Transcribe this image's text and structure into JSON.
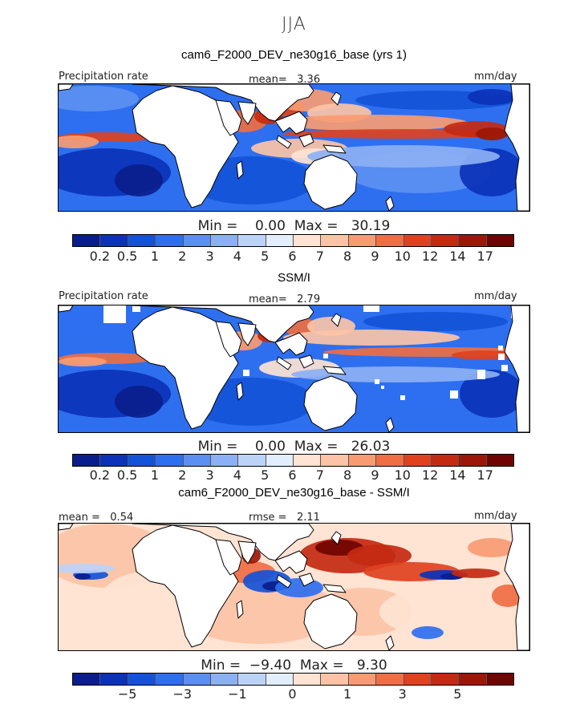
{
  "figure": {
    "season": "JJA"
  },
  "colors": {
    "abs_scale": [
      "#0a1d8c",
      "#0b32b8",
      "#1453d8",
      "#2e6ff0",
      "#5c8ff2",
      "#8cb0f4",
      "#bcd3f8",
      "#e2eefc",
      "#ffe3d3",
      "#fcc3a6",
      "#f89b72",
      "#ef6e43",
      "#e0421f",
      "#c42a12",
      "#9c1707",
      "#700402"
    ],
    "diff_scale": [
      "#0a1d8c",
      "#0b32b8",
      "#1453d8",
      "#2e6ff0",
      "#5c8ff2",
      "#8cb0f4",
      "#bcd3f8",
      "#e2eefc",
      "#ffe3d3",
      "#fcc3a6",
      "#f89b72",
      "#ef6e43",
      "#e0421f",
      "#c42a12",
      "#9c1707",
      "#700402"
    ],
    "land": "#ffffff",
    "coast": "#000000"
  },
  "panels": [
    {
      "title": "cam6_F2000_DEV_ne30g16_base (yrs 1)",
      "left_label": "Precipitation rate",
      "mid_label": "mean=   3.36",
      "units": "mm/day",
      "minmax": "Min =    0.00  Max =   30.19",
      "field": "model",
      "tick_labels": [
        "0.2",
        "0.5",
        "1",
        "2",
        "3",
        "4",
        "5",
        "6",
        "7",
        "8",
        "9",
        "10",
        "12",
        "14",
        "17"
      ]
    },
    {
      "title": "SSM/I",
      "left_label": "Precipitation rate",
      "mid_label": "mean=   2.79",
      "units": "mm/day",
      "minmax": "Min =    0.00  Max =   26.03",
      "field": "obs",
      "tick_labels": [
        "0.2",
        "0.5",
        "1",
        "2",
        "3",
        "4",
        "5",
        "6",
        "7",
        "8",
        "9",
        "10",
        "12",
        "14",
        "17"
      ]
    },
    {
      "title": "cam6_F2000_DEV_ne30g16_base - SSM/I",
      "left_label": "mean =   0.54",
      "mid_label": "rmse =   2.11",
      "units": "mm/day",
      "minmax": "Min =  −9.40  Max =   9.30",
      "field": "diff",
      "tick_labels": [
        "−5",
        "−3",
        "−1",
        "0",
        "1",
        "3",
        "5"
      ]
    }
  ]
}
